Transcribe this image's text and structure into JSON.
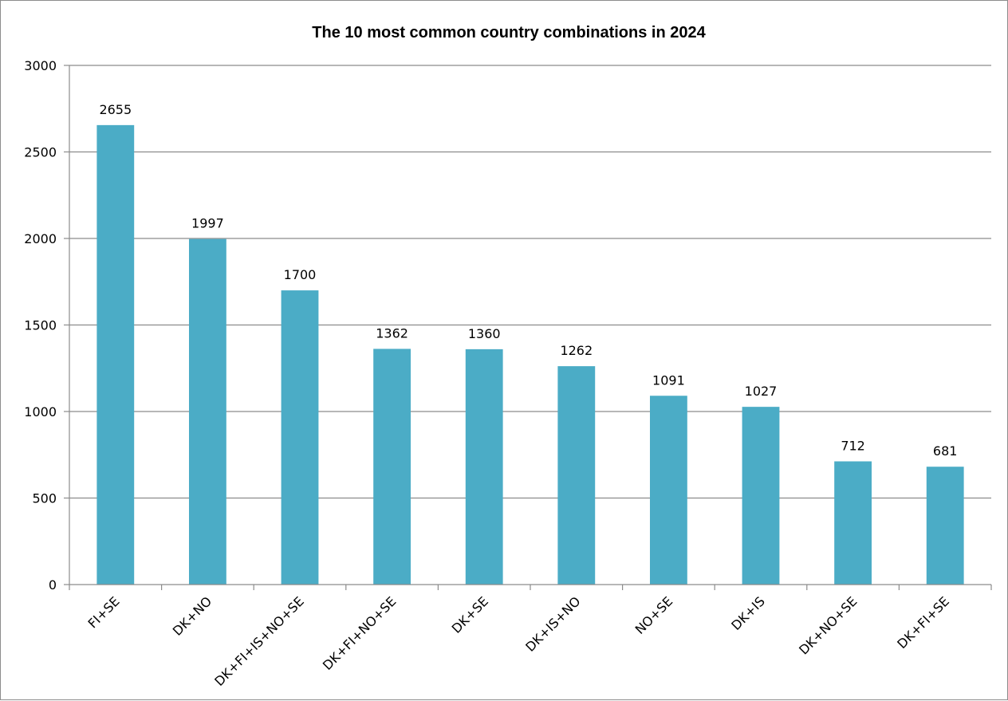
{
  "chart_data": {
    "type": "bar",
    "title": "The 10 most common country combinations in 2024",
    "xlabel": "",
    "ylabel": "",
    "categories": [
      "FI+SE",
      "DK+NO",
      "DK+FI+IS+NO+SE",
      "DK+FI+NO+SE",
      "DK+SE",
      "DK+IS+NO",
      "NO+SE",
      "DK+IS",
      "DK+NO+SE",
      "DK+FI+SE"
    ],
    "values": [
      2655,
      1997,
      1700,
      1362,
      1360,
      1262,
      1091,
      1027,
      712,
      681
    ],
    "data_labels": [
      "2655",
      "1997",
      "1700",
      "1362",
      "1360",
      "1262",
      "1091",
      "1027",
      "712",
      "681"
    ],
    "ylim": [
      0,
      3000
    ],
    "yticks": [
      "0",
      "500",
      "1000",
      "1500",
      "2000",
      "2500",
      "3000"
    ],
    "grid": true,
    "legend": "none",
    "bar_color": "#4BACC6"
  }
}
